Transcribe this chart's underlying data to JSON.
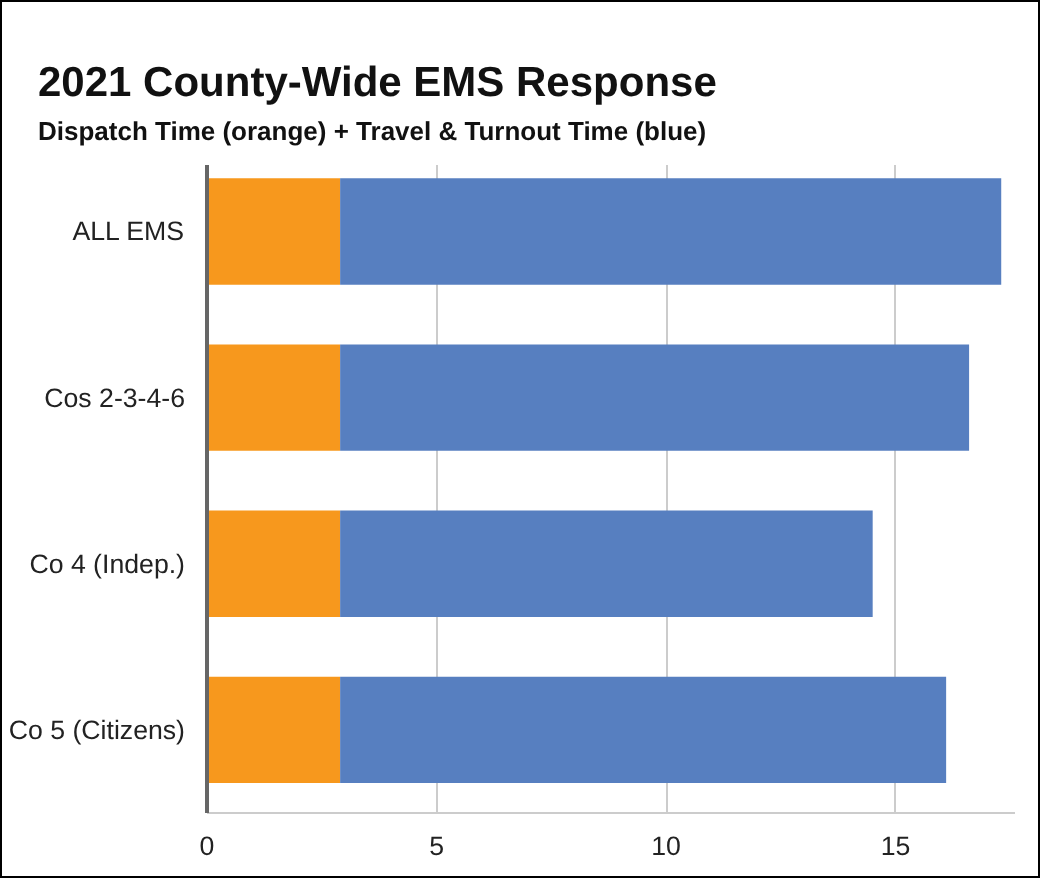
{
  "chart_data": {
    "type": "bar",
    "orientation": "horizontal",
    "stacked": true,
    "title": "2021 County-Wide EMS Response",
    "subtitle": "Dispatch Time (orange) + Travel & Turnout Time (blue)",
    "categories": [
      "ALL EMS",
      "Cos 2-3-4-6",
      "Co 4 (Indep.)",
      "Co 5 (Citizens)"
    ],
    "series": [
      {
        "color": "#f7981d",
        "values": [
          2.9,
          2.9,
          2.9,
          2.9
        ]
      },
      {
        "color": "#577fc0",
        "values": [
          14.4,
          13.7,
          11.6,
          13.2
        ]
      }
    ],
    "xlim": [
      0,
      17.6
    ],
    "xticks": [
      0,
      5,
      10,
      15
    ],
    "grid": "x"
  }
}
